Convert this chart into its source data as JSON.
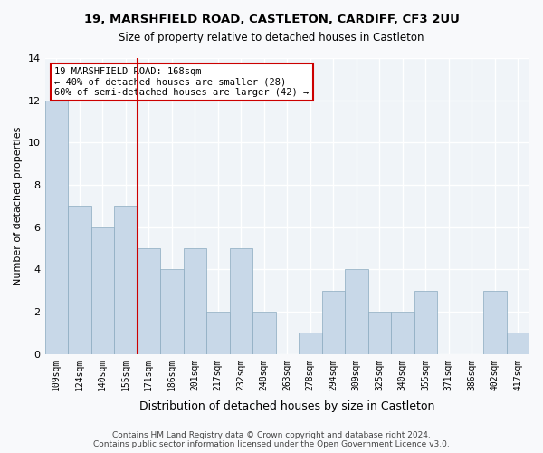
{
  "title1": "19, MARSHFIELD ROAD, CASTLETON, CARDIFF, CF3 2UU",
  "title2": "Size of property relative to detached houses in Castleton",
  "xlabel": "Distribution of detached houses by size in Castleton",
  "ylabel": "Number of detached properties",
  "bar_color": "#c8d8e8",
  "bar_edge_color": "#8aaabf",
  "categories": [
    "109sqm",
    "124sqm",
    "140sqm",
    "155sqm",
    "171sqm",
    "186sqm",
    "201sqm",
    "217sqm",
    "232sqm",
    "248sqm",
    "263sqm",
    "278sqm",
    "294sqm",
    "309sqm",
    "325sqm",
    "340sqm",
    "355sqm",
    "371sqm",
    "386sqm",
    "402sqm",
    "417sqm"
  ],
  "values": [
    12,
    7,
    6,
    7,
    5,
    4,
    5,
    2,
    5,
    2,
    0,
    1,
    3,
    4,
    2,
    2,
    3,
    0,
    0,
    3,
    1
  ],
  "ylim": [
    0,
    14
  ],
  "yticks": [
    0,
    2,
    4,
    6,
    8,
    10,
    12,
    14
  ],
  "vline_x": 4,
  "vline_color": "#cc0000",
  "annotation_text": "19 MARSHFIELD ROAD: 168sqm\n← 40% of detached houses are smaller (28)\n60% of semi-detached houses are larger (42) →",
  "annotation_box_color": "#cc0000",
  "footer": "Contains HM Land Registry data © Crown copyright and database right 2024.\nContains public sector information licensed under the Open Government Licence v3.0.",
  "background_color": "#f0f4f8",
  "grid_color": "#ffffff",
  "bar_width": 1.0
}
